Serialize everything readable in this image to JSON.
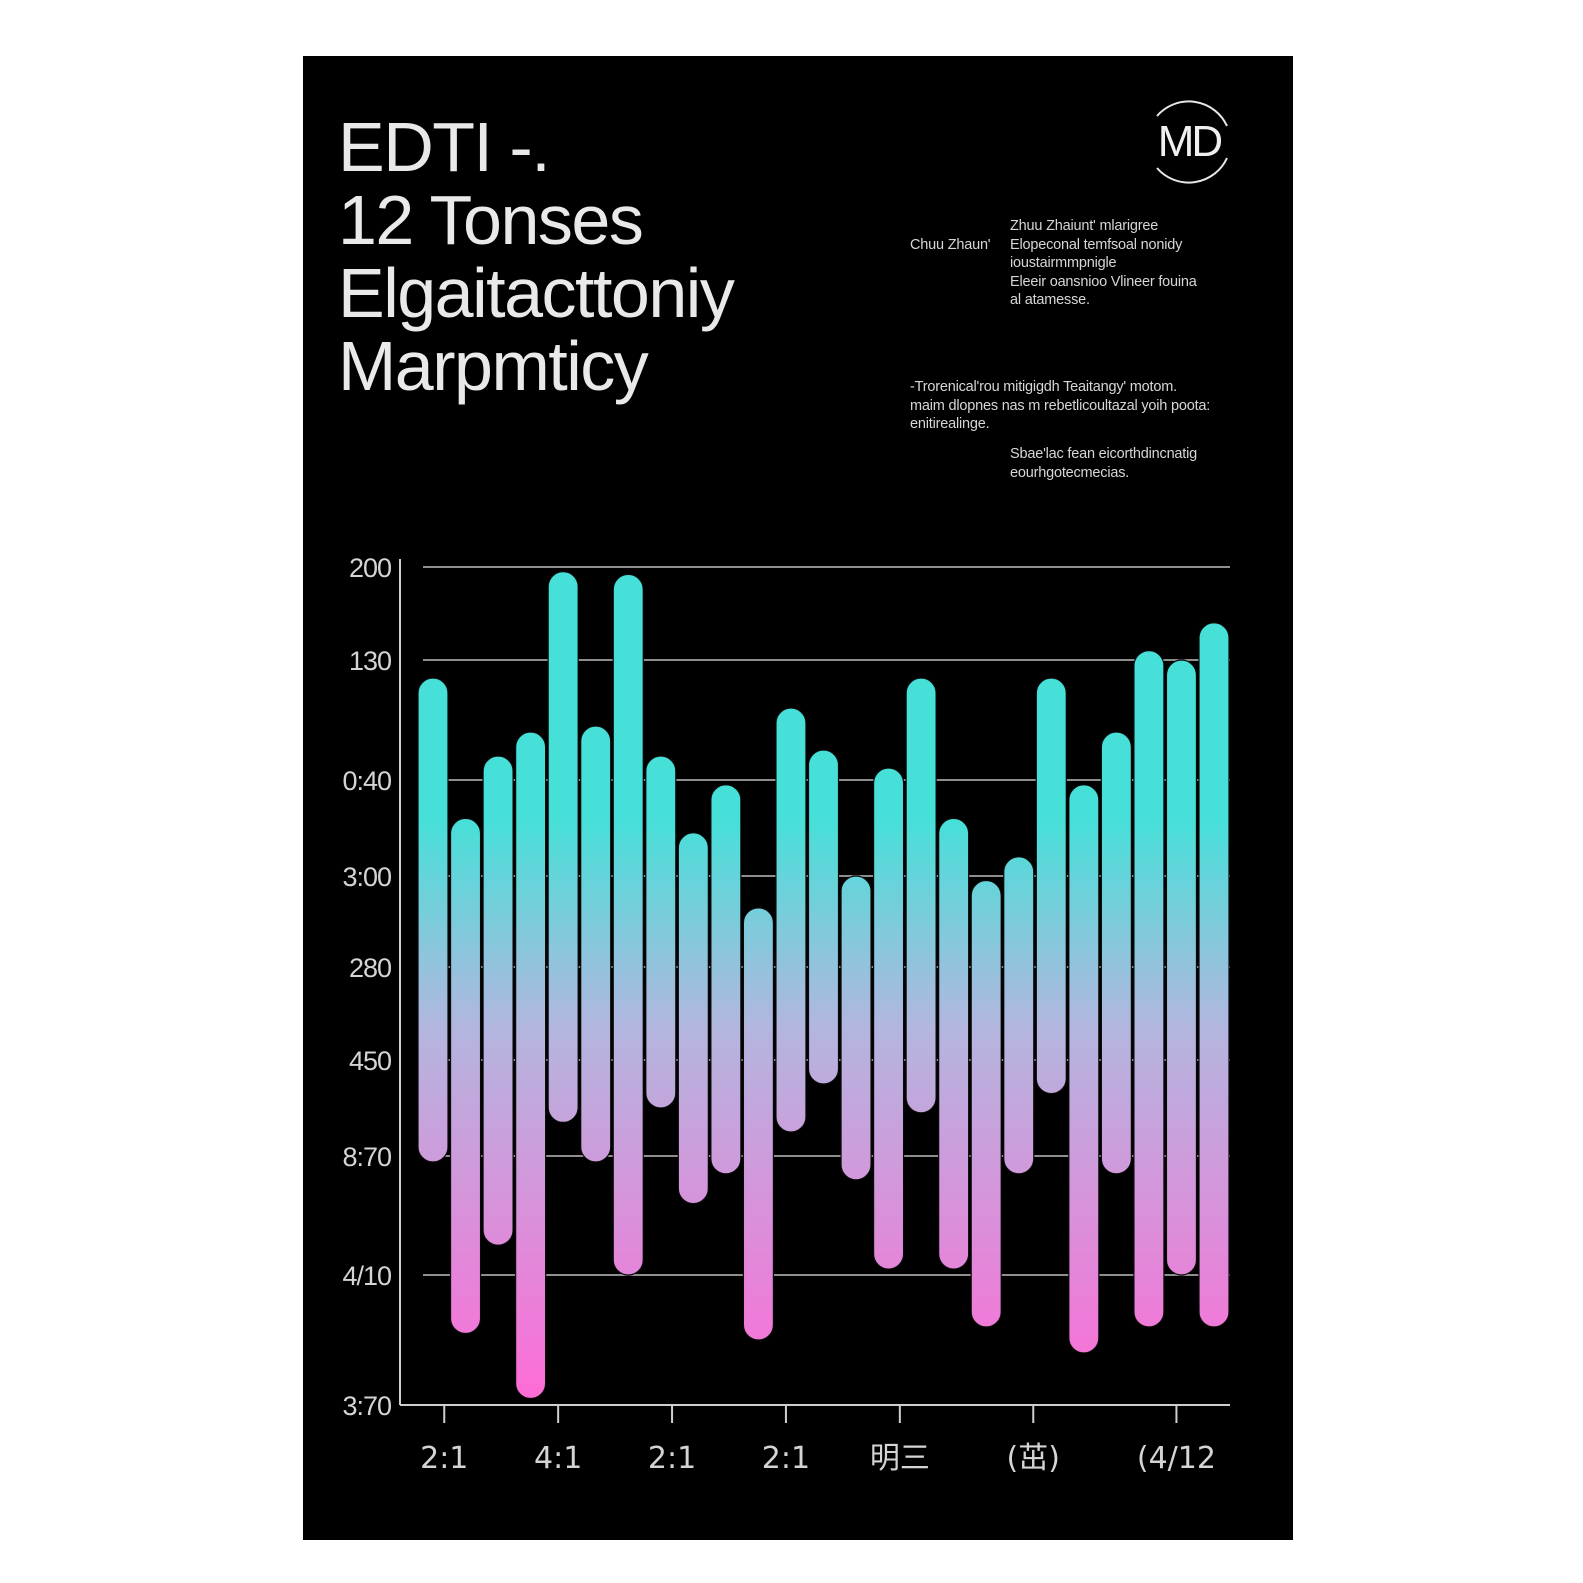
{
  "poster": {
    "title_lines": [
      "EDTI -.",
      "12 Tonses",
      "Elgaitacttoniy",
      "Marpmticy"
    ],
    "logo_text": "MD",
    "description_a": {
      "label": "Chuu Zhaun'",
      "lines": [
        "Zhuu Zhaiunt' mlarigree",
        "Elopeconal temfsoal nonidy",
        "ioustairmmpnigle",
        "Eleeir oansnioo Vlineer fouina",
        "al atamesse."
      ]
    },
    "description_b": {
      "lines": [
        "-Trorenical'rou mitigigdh Teaitangy' motom.",
        "maim dlopnes nas m rebetlicoultazal yoih poota:",
        "enitirealinge."
      ]
    },
    "description_c": {
      "lines": [
        "Sbae'lac fean eicorthdincnatig",
        "eourhgotecmecias."
      ]
    }
  },
  "chart_data": {
    "type": "bar",
    "subtype": "floating-range",
    "title": "",
    "xlabel": "",
    "ylabel": "",
    "grid": true,
    "legend": "none",
    "y_tick_labels": [
      "3:70",
      "4/10",
      "8:70",
      "450",
      "280",
      "3:00",
      "0:40",
      "130",
      "200"
    ],
    "y_scale_note": "values are expressed in tick-index units: 0 = bottom tick (3:70), 8 = top tick (200)",
    "ylim": [
      0,
      8
    ],
    "x_tick_labels": [
      "2:1",
      "4:1",
      "2:1",
      "2:1",
      "明三",
      "(茁)",
      "(4/12"
    ],
    "x_tick_bar_index": [
      0.1,
      3.6,
      7.1,
      10.6,
      14.1,
      18.2,
      22.6
    ],
    "gradient": {
      "top_color": "#46e0d8",
      "mid_color": "#b3b6de",
      "bottom_color": "#ff6bd6"
    },
    "series": [
      {
        "name": "range",
        "low": [
          1.95,
          0.55,
          1.25,
          0.05,
          2.35,
          1.95,
          1.0,
          2.5,
          1.6,
          1.85,
          0.5,
          2.25,
          2.75,
          1.8,
          1.05,
          2.45,
          1.05,
          0.6,
          1.85,
          2.65,
          0.4,
          1.85,
          0.6,
          1.0,
          0.6
        ],
        "high": [
          6.85,
          5.6,
          6.2,
          6.4,
          7.95,
          6.45,
          7.92,
          6.2,
          5.45,
          5.95,
          4.65,
          6.6,
          6.25,
          5.0,
          6.1,
          6.85,
          5.6,
          4.95,
          5.2,
          6.85,
          5.95,
          6.4,
          7.1,
          7.0,
          7.4
        ]
      }
    ]
  }
}
